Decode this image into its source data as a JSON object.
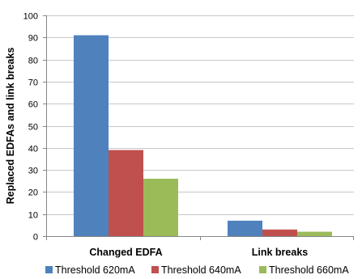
{
  "chart_data": {
    "type": "bar",
    "title": "",
    "xlabel": "",
    "ylabel": "Replaced EDFAs and link breaks",
    "ylim": [
      0,
      100
    ],
    "yticks": [
      0,
      10,
      20,
      30,
      40,
      50,
      60,
      70,
      80,
      90,
      100
    ],
    "grid": true,
    "legend_position": "bottom",
    "categories": [
      "Changed EDFA",
      "Link breaks"
    ],
    "series": [
      {
        "name": "Threshold 620mA",
        "values": [
          91,
          7
        ],
        "color": "#4f81bd"
      },
      {
        "name": "Threshold 640mA",
        "values": [
          39,
          3
        ],
        "color": "#c0504d"
      },
      {
        "name": "Threshold 660mA",
        "values": [
          26,
          2
        ],
        "color": "#9bbb59"
      }
    ]
  }
}
